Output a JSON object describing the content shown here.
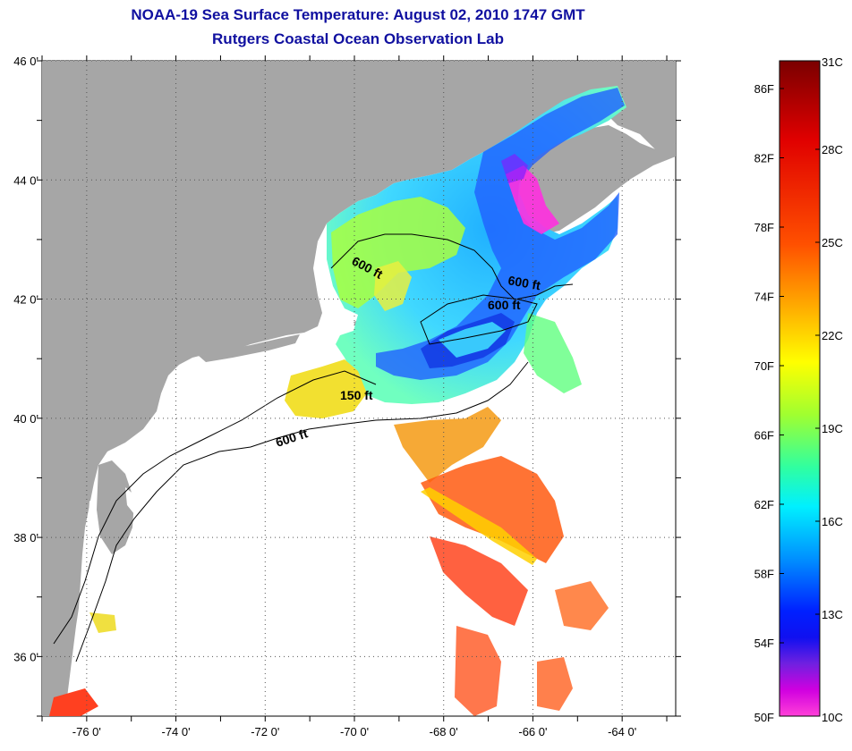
{
  "header": {
    "title": "NOAA-19 Sea Surface Temperature:  August 02, 2010 1747 GMT",
    "subtitle": "Rutgers Coastal Ocean Observation Lab"
  },
  "map": {
    "lon_range": [
      -77.0,
      -62.8
    ],
    "lat_range": [
      35.0,
      46.0
    ],
    "lon_ticks": [
      {
        "value": -76,
        "label": "-76 0'"
      },
      {
        "value": -74,
        "label": "-74 0'"
      },
      {
        "value": -72,
        "label": "-72 0'"
      },
      {
        "value": -70,
        "label": "-70 0'"
      },
      {
        "value": -68,
        "label": "-68 0'"
      },
      {
        "value": -66,
        "label": "-66 0'"
      },
      {
        "value": -64,
        "label": "-64 0'"
      }
    ],
    "lat_ticks": [
      {
        "value": 46,
        "label": "46 0'"
      },
      {
        "value": 44,
        "label": "44 0'"
      },
      {
        "value": 42,
        "label": "42 0'"
      },
      {
        "value": 40,
        "label": "40 0'"
      },
      {
        "value": 38,
        "label": "38 0'"
      },
      {
        "value": 36,
        "label": "36 0'"
      }
    ],
    "depth_labels": [
      {
        "text": "600 ft",
        "lon": -69.6,
        "lat": 42.9
      },
      {
        "text": "600 ft",
        "lon": -66.4,
        "lat": 42.5
      },
      {
        "text": "600 ft",
        "lon": -67.0,
        "lat": 42.0
      },
      {
        "text": "150 ft",
        "lon": -69.8,
        "lat": 40.6
      },
      {
        "text": "600 ft",
        "lon": -71.2,
        "lat": 39.85
      }
    ],
    "colors": {
      "land": "#a6a6a6",
      "ocean_nodata": "#ffffff",
      "title": "#1010a0"
    }
  },
  "colorbar": {
    "fahrenheit": [
      "86F",
      "82F",
      "78F",
      "74F",
      "70F",
      "66F",
      "62F",
      "58F",
      "54F",
      "50F"
    ],
    "celsius": [
      "31C",
      "28C",
      "25C",
      "22C",
      "19C",
      "16C",
      "13C",
      "10C"
    ],
    "stops": [
      "#7a0000",
      "#ff0000",
      "#ff6a00",
      "#ffc800",
      "#ffff00",
      "#90ff30",
      "#00ffd0",
      "#00b0ff",
      "#0050ff",
      "#0000ff",
      "#8000ff",
      "#ff00ff",
      "#ff60d0"
    ]
  }
}
